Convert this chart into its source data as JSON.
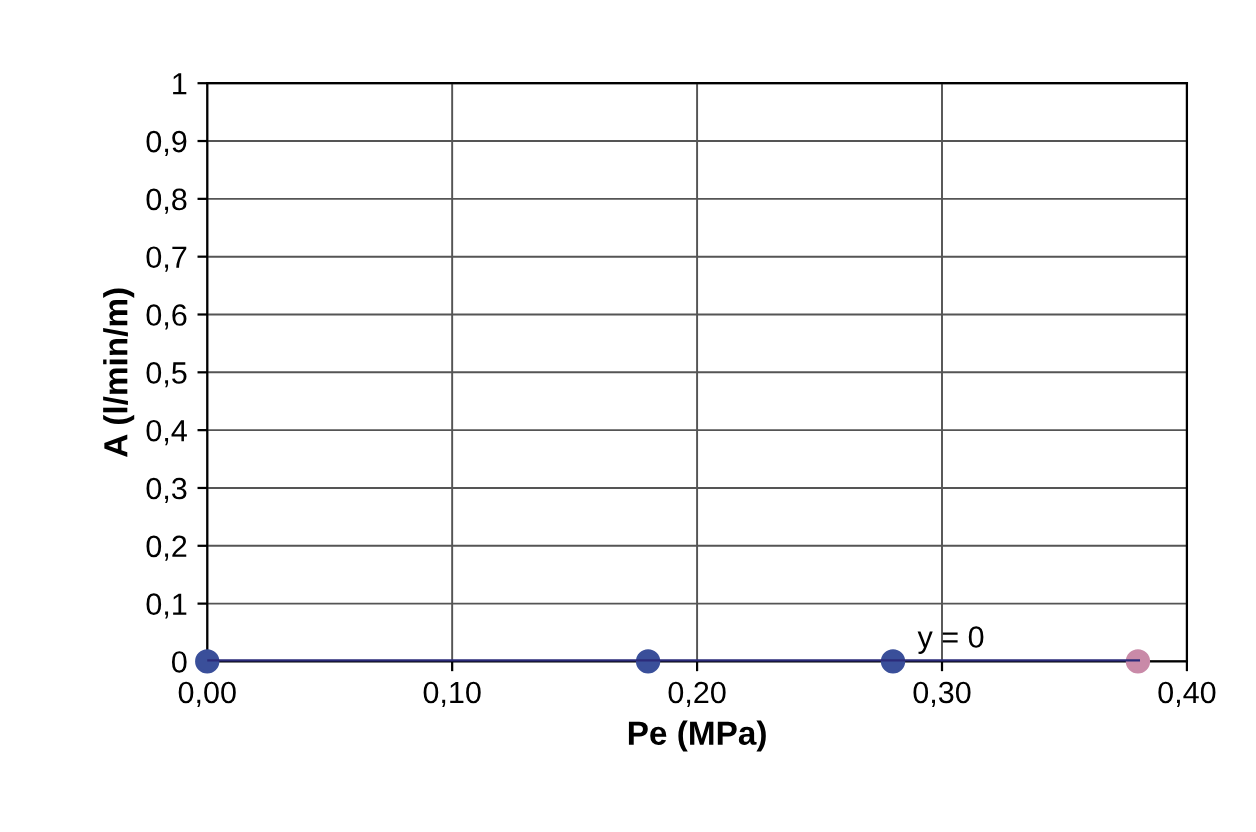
{
  "chart_data": {
    "type": "scatter",
    "xlabel": "Pe (MPa)",
    "ylabel": "A (l/min/m)",
    "series": [
      {
        "type": "line",
        "marker": "none",
        "color": "#2b2b7a",
        "x": [
          0,
          0.38
        ],
        "values": [
          0,
          0
        ]
      },
      {
        "color": "#3a4f9a",
        "colors": [
          "#3a4f9a",
          "#3a4f9a",
          "#3a4f9a",
          "#c98aa8"
        ],
        "x": [
          0,
          0.18,
          0.28,
          0.38
        ],
        "values": [
          0,
          0,
          0,
          0
        ]
      }
    ],
    "annotations": [
      {
        "text": "y = 0",
        "x": 0.29,
        "y": 0
      }
    ],
    "xlim": [
      0,
      0.4
    ],
    "ylim": [
      0,
      1
    ],
    "xticks": [
      {
        "value": 0,
        "label": "0,00"
      },
      {
        "value": 0.1,
        "label": "0,10"
      },
      {
        "value": 0.2,
        "label": "0,20"
      },
      {
        "value": 0.3,
        "label": "0,30"
      },
      {
        "value": 0.4,
        "label": "0,40"
      }
    ],
    "yticks": [
      0,
      {
        "value": 0.1,
        "label": "0,1"
      },
      {
        "value": 0.2,
        "label": "0,2"
      },
      {
        "value": 0.3,
        "label": "0,3"
      },
      {
        "value": 0.4,
        "label": "0,4"
      },
      {
        "value": 0.5,
        "label": "0,5"
      },
      {
        "value": 0.6,
        "label": "0,6"
      },
      {
        "value": 0.7,
        "label": "0,7"
      },
      {
        "value": 0.8,
        "label": "0,8"
      },
      {
        "value": 0.9,
        "label": "0,9"
      },
      1
    ],
    "grid": true,
    "marker": "circle"
  }
}
